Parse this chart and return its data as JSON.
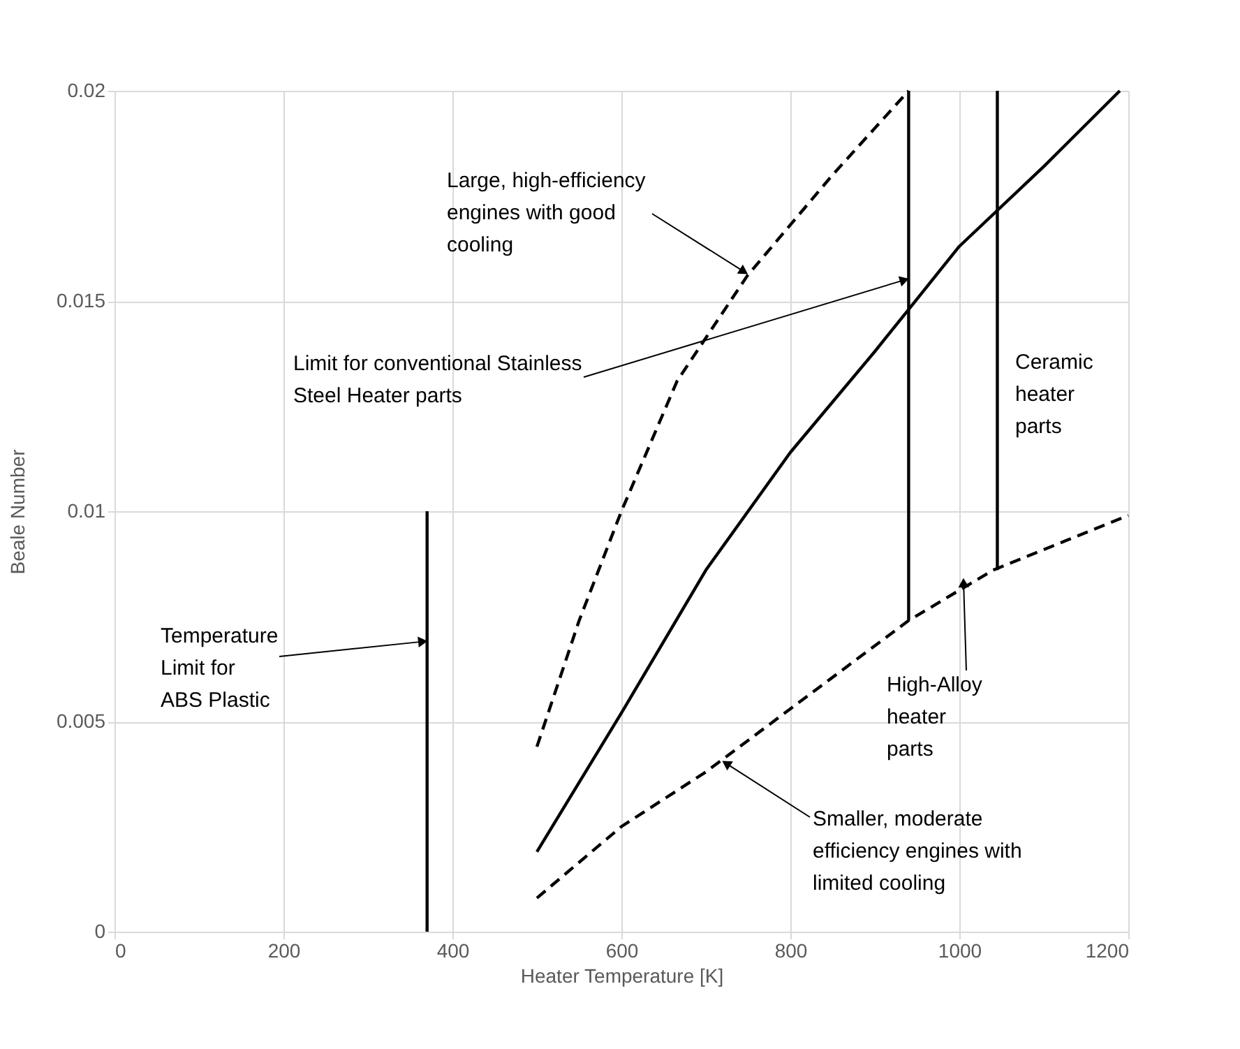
{
  "chart_data": {
    "type": "line",
    "xlabel": "Heater Temperature [K]",
    "ylabel": "Beale Number",
    "series": [
      {
        "color": "#000000",
        "line_style": "dashed",
        "x": [
          500,
          550,
          600,
          666,
          749,
          850,
          940
        ],
        "values": [
          0.0044,
          0.0074,
          0.01,
          0.0131,
          0.0156,
          0.018,
          0.02
        ]
      },
      {
        "color": "#000000",
        "line_style": "solid",
        "x": [
          500,
          600,
          700,
          800,
          900,
          940,
          1000,
          1100,
          1190
        ],
        "values": [
          0.0019,
          0.0052,
          0.0086,
          0.0114,
          0.0138,
          0.0148,
          0.0163,
          0.0182,
          0.02
        ]
      },
      {
        "color": "#000000",
        "line_style": "dashed",
        "x": [
          500,
          600,
          700,
          800,
          940,
          1040,
          1200
        ],
        "values": [
          0.0008,
          0.0025,
          0.0038,
          0.0053,
          0.0074,
          0.0086,
          0.0099
        ]
      },
      {
        "color": "#000000",
        "line_style": "solid",
        "x": [
          370,
          370
        ],
        "values": [
          0,
          0.01
        ]
      },
      {
        "color": "#000000",
        "line_style": "solid",
        "x": [
          940,
          940
        ],
        "values": [
          0.0074,
          0.02
        ]
      },
      {
        "color": "#000000",
        "line_style": "solid",
        "x": [
          1045,
          1045
        ],
        "values": [
          0.0086,
          0.02
        ]
      }
    ],
    "annotations": [
      {
        "text": "Large, high-efficiency engines with good cooling",
        "x": 745,
        "y": 0.0157
      },
      {
        "text": "Limit for conventional Stainless Steel Heater parts",
        "x": 935,
        "y": 0.0155
      },
      "Ceramic heater parts",
      {
        "text": "Temperature Limit for ABS Plastic",
        "x": 365,
        "y": 0.0069
      },
      {
        "text": "High-Alloy heater parts",
        "x": 1005,
        "y": 0.0083
      },
      {
        "text": "Smaller, moderate efficiency engines with limited cooling",
        "x": 724,
        "y": 0.004
      }
    ],
    "xlim": [
      0,
      1200
    ],
    "xticks": [
      0,
      200,
      400,
      600,
      800,
      {
        "value": 1000,
        "label": "1000"
      },
      {
        "value": 1200,
        "label": "1200"
      }
    ],
    "ylim": [
      0,
      0.02
    ],
    "yticks": [
      0,
      0.005,
      0.01,
      0.015,
      0.02
    ],
    "grid": true,
    "marker": "none"
  }
}
